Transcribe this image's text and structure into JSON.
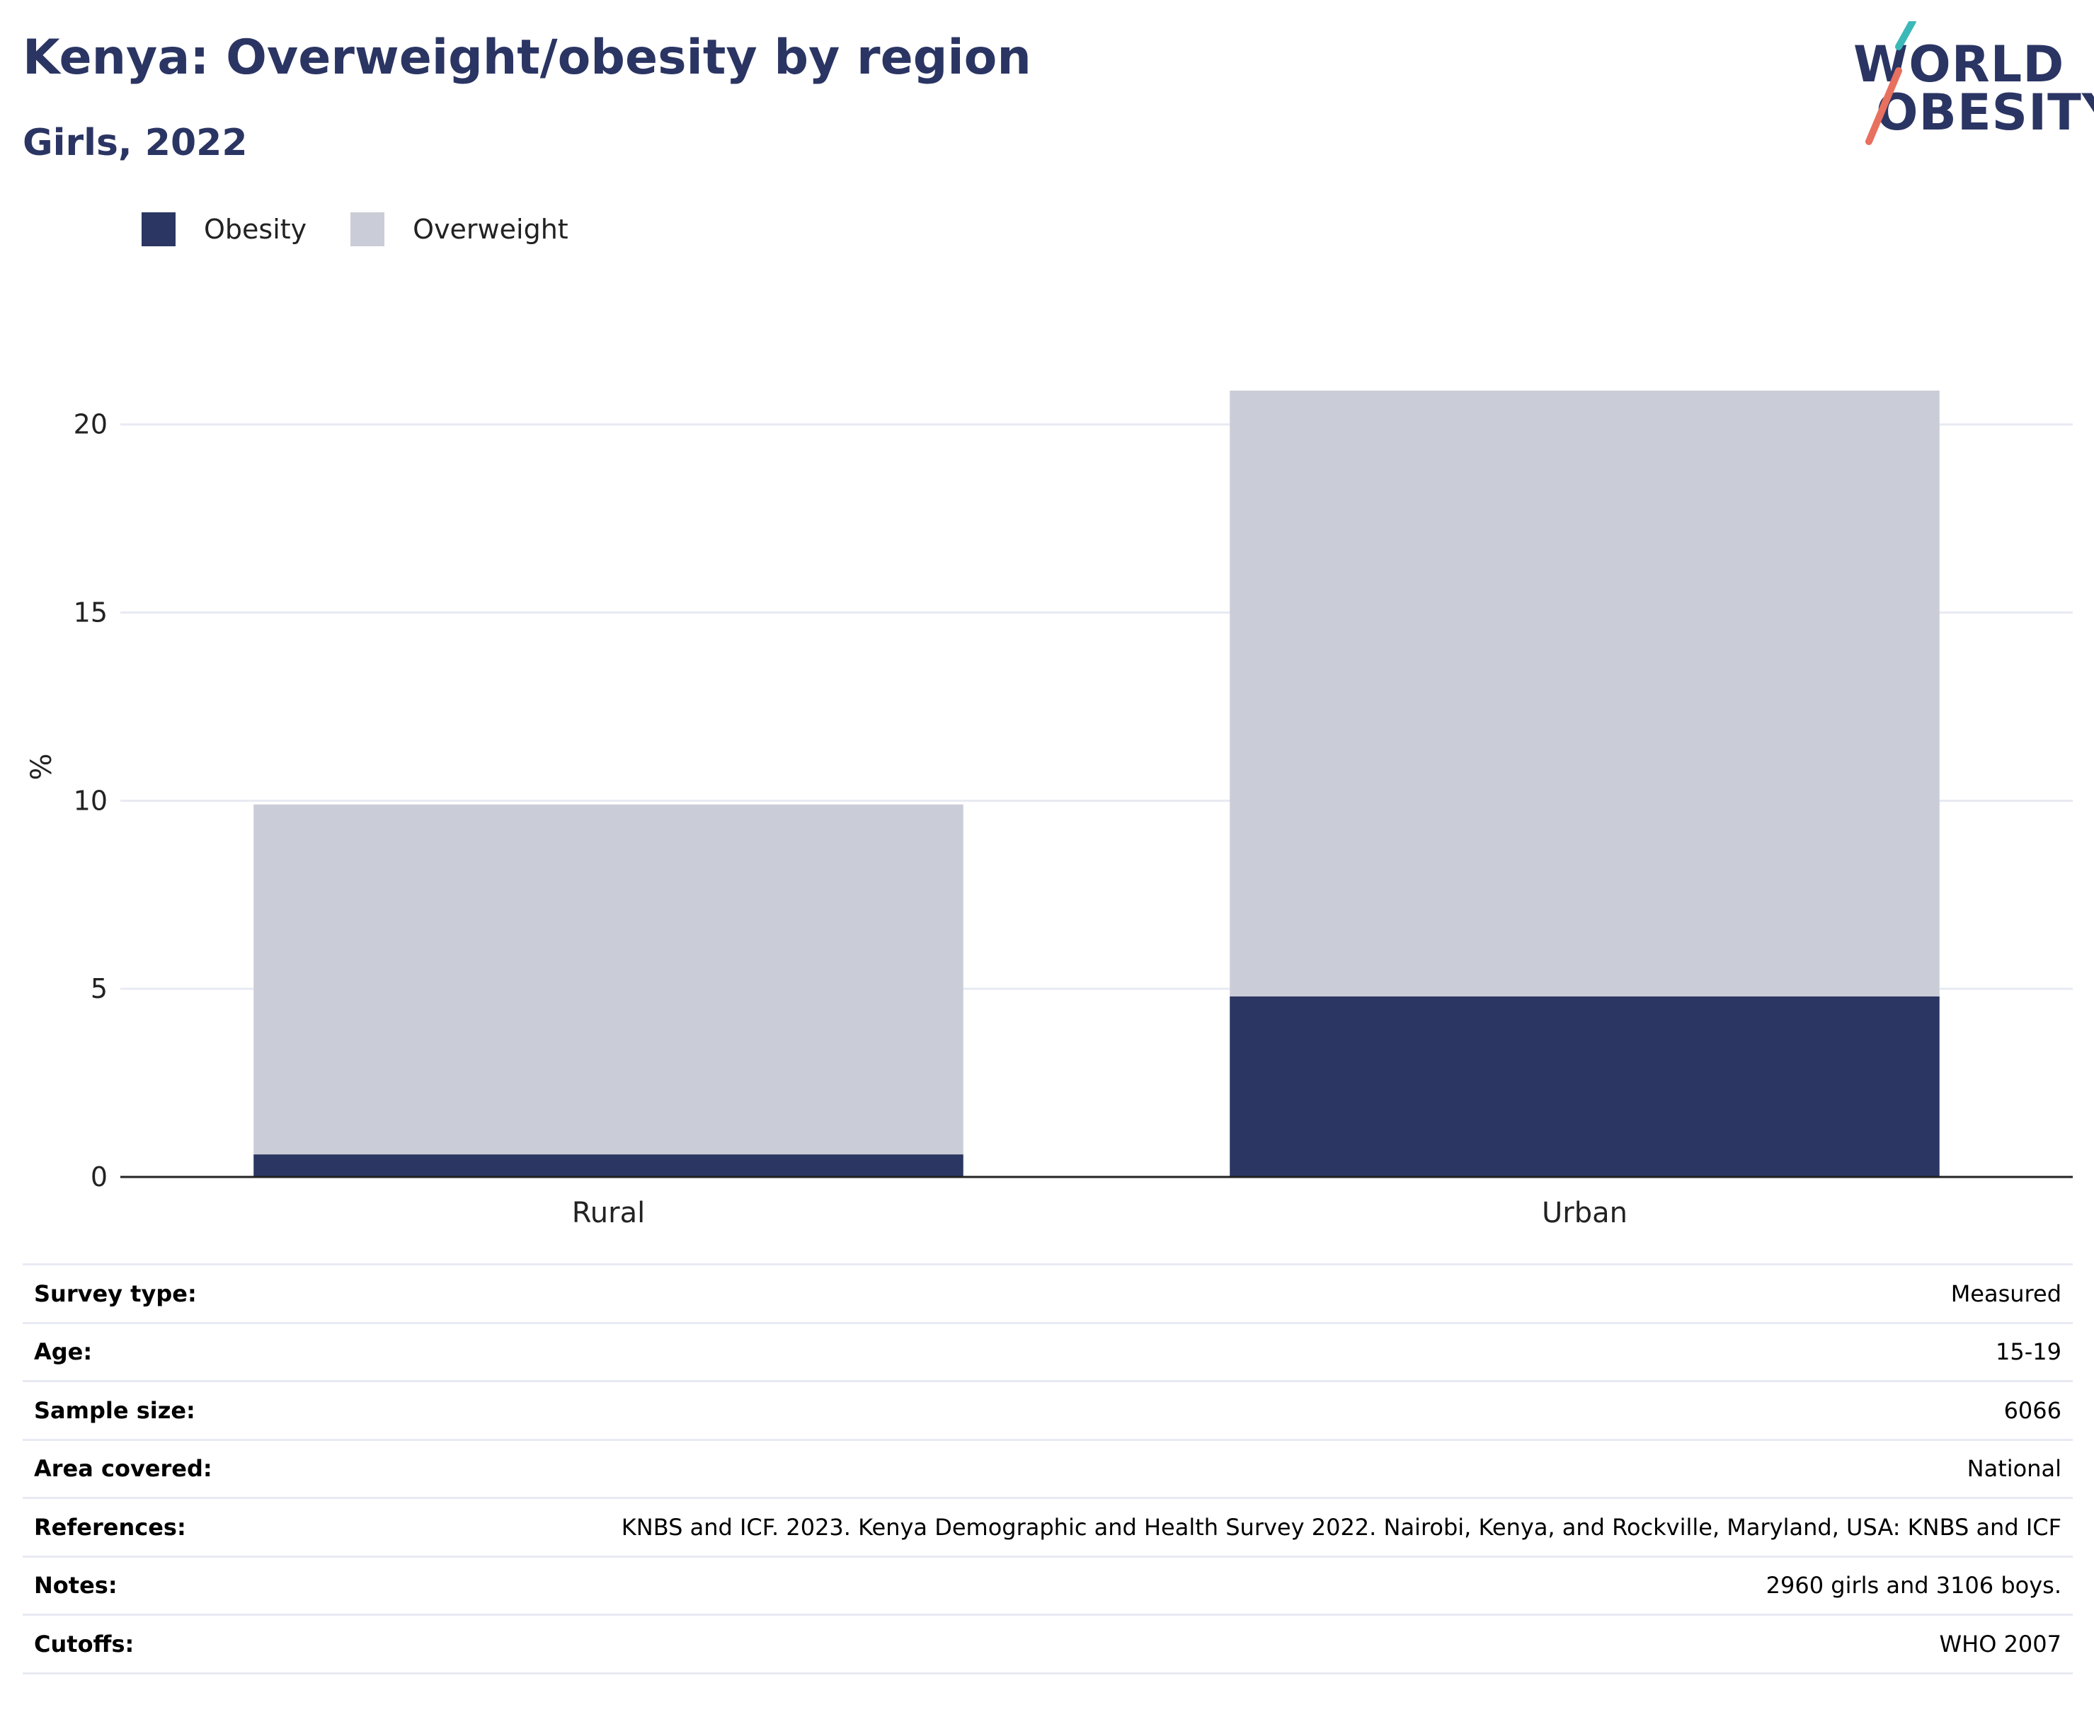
{
  "colors": {
    "title": "#2b3563",
    "obesity": "#2b3663",
    "overweight": "#cacdd8",
    "grid": "#e8eaf3",
    "axis": "#222222",
    "logo_teal": "#3cb8b8",
    "logo_coral": "#e8705f"
  },
  "logo": {
    "line1": "WORLD",
    "line2": "OBESITY"
  },
  "chart_data": {
    "type": "bar",
    "stacked": true,
    "title": "Kenya: Overweight/obesity by region",
    "subtitle": "Girls, 2022",
    "categories": [
      "Rural",
      "Urban"
    ],
    "series": [
      {
        "name": "Obesity",
        "values": [
          0.6,
          4.8
        ]
      },
      {
        "name": "Overweight",
        "values": [
          9.3,
          16.1
        ]
      }
    ],
    "ylabel": "%",
    "yticks": [
      0,
      5,
      10,
      15,
      20
    ],
    "ylim": [
      0,
      21.5
    ],
    "grid": true,
    "legend": "top-left"
  },
  "metadata": [
    {
      "label": "Survey type:",
      "value": "Measured"
    },
    {
      "label": "Age:",
      "value": "15-19"
    },
    {
      "label": "Sample size:",
      "value": "6066"
    },
    {
      "label": "Area covered:",
      "value": "National"
    },
    {
      "label": "References:",
      "value": "KNBS and ICF. 2023. Kenya Demographic and Health Survey 2022. Nairobi, Kenya, and Rockville, Maryland, USA: KNBS and ICF"
    },
    {
      "label": "Notes:",
      "value": "2960 girls and 3106 boys."
    },
    {
      "label": "Cutoffs:",
      "value": "WHO 2007"
    }
  ]
}
